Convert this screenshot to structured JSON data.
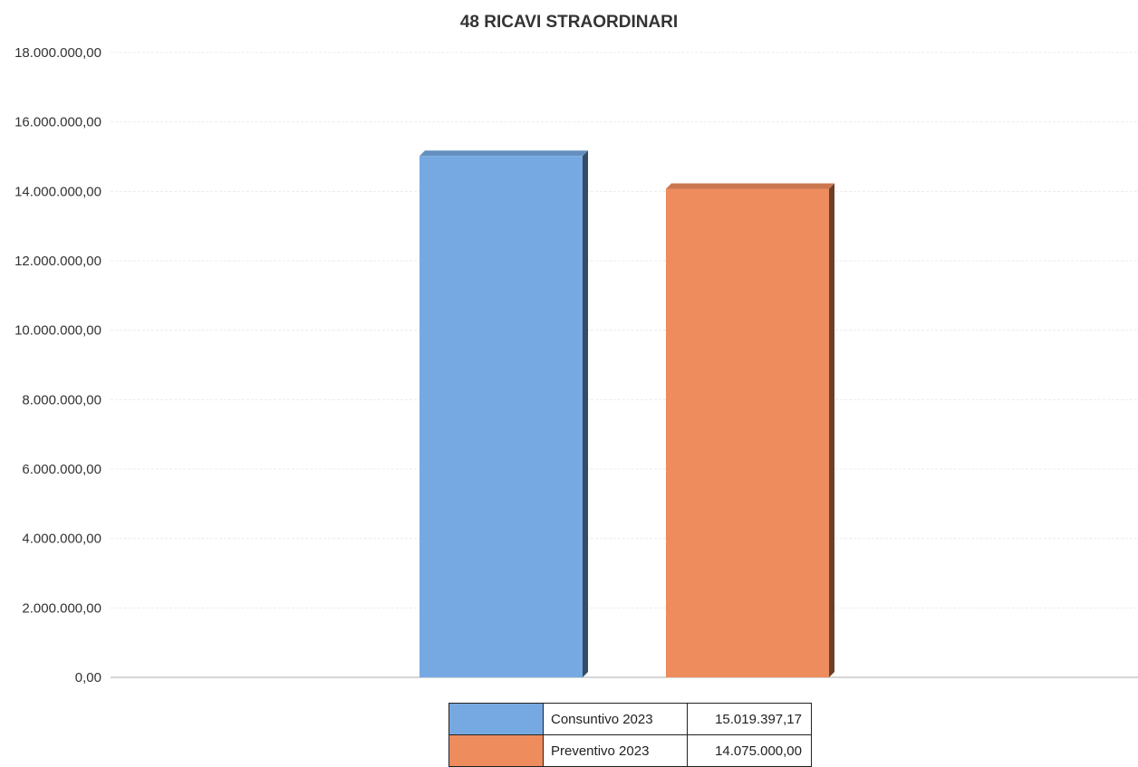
{
  "chart_data": {
    "type": "bar",
    "title": "48 RICAVI STRAORDINARI",
    "xlabel": "",
    "ylabel": "",
    "ylim": [
      0,
      18000000
    ],
    "yticks": [
      0,
      2000000,
      4000000,
      6000000,
      8000000,
      10000000,
      12000000,
      14000000,
      16000000,
      18000000
    ],
    "ytick_labels": [
      "0,00",
      "2.000.000,00",
      "4.000.000,00",
      "6.000.000,00",
      "8.000.000,00",
      "10.000.000,00",
      "12.000.000,00",
      "14.000.000,00",
      "16.000.000,00",
      "18.000.000,00"
    ],
    "grid": true,
    "legend_placement": "bottom",
    "series": [
      {
        "name": "Consuntivo 2023",
        "value": 15019397.17,
        "value_label": "15.019.397,17",
        "color": "#76a9e1"
      },
      {
        "name": "Preventivo 2023",
        "value": 14075000.0,
        "value_label": "14.075.000,00",
        "color": "#ee8c5e"
      }
    ]
  }
}
